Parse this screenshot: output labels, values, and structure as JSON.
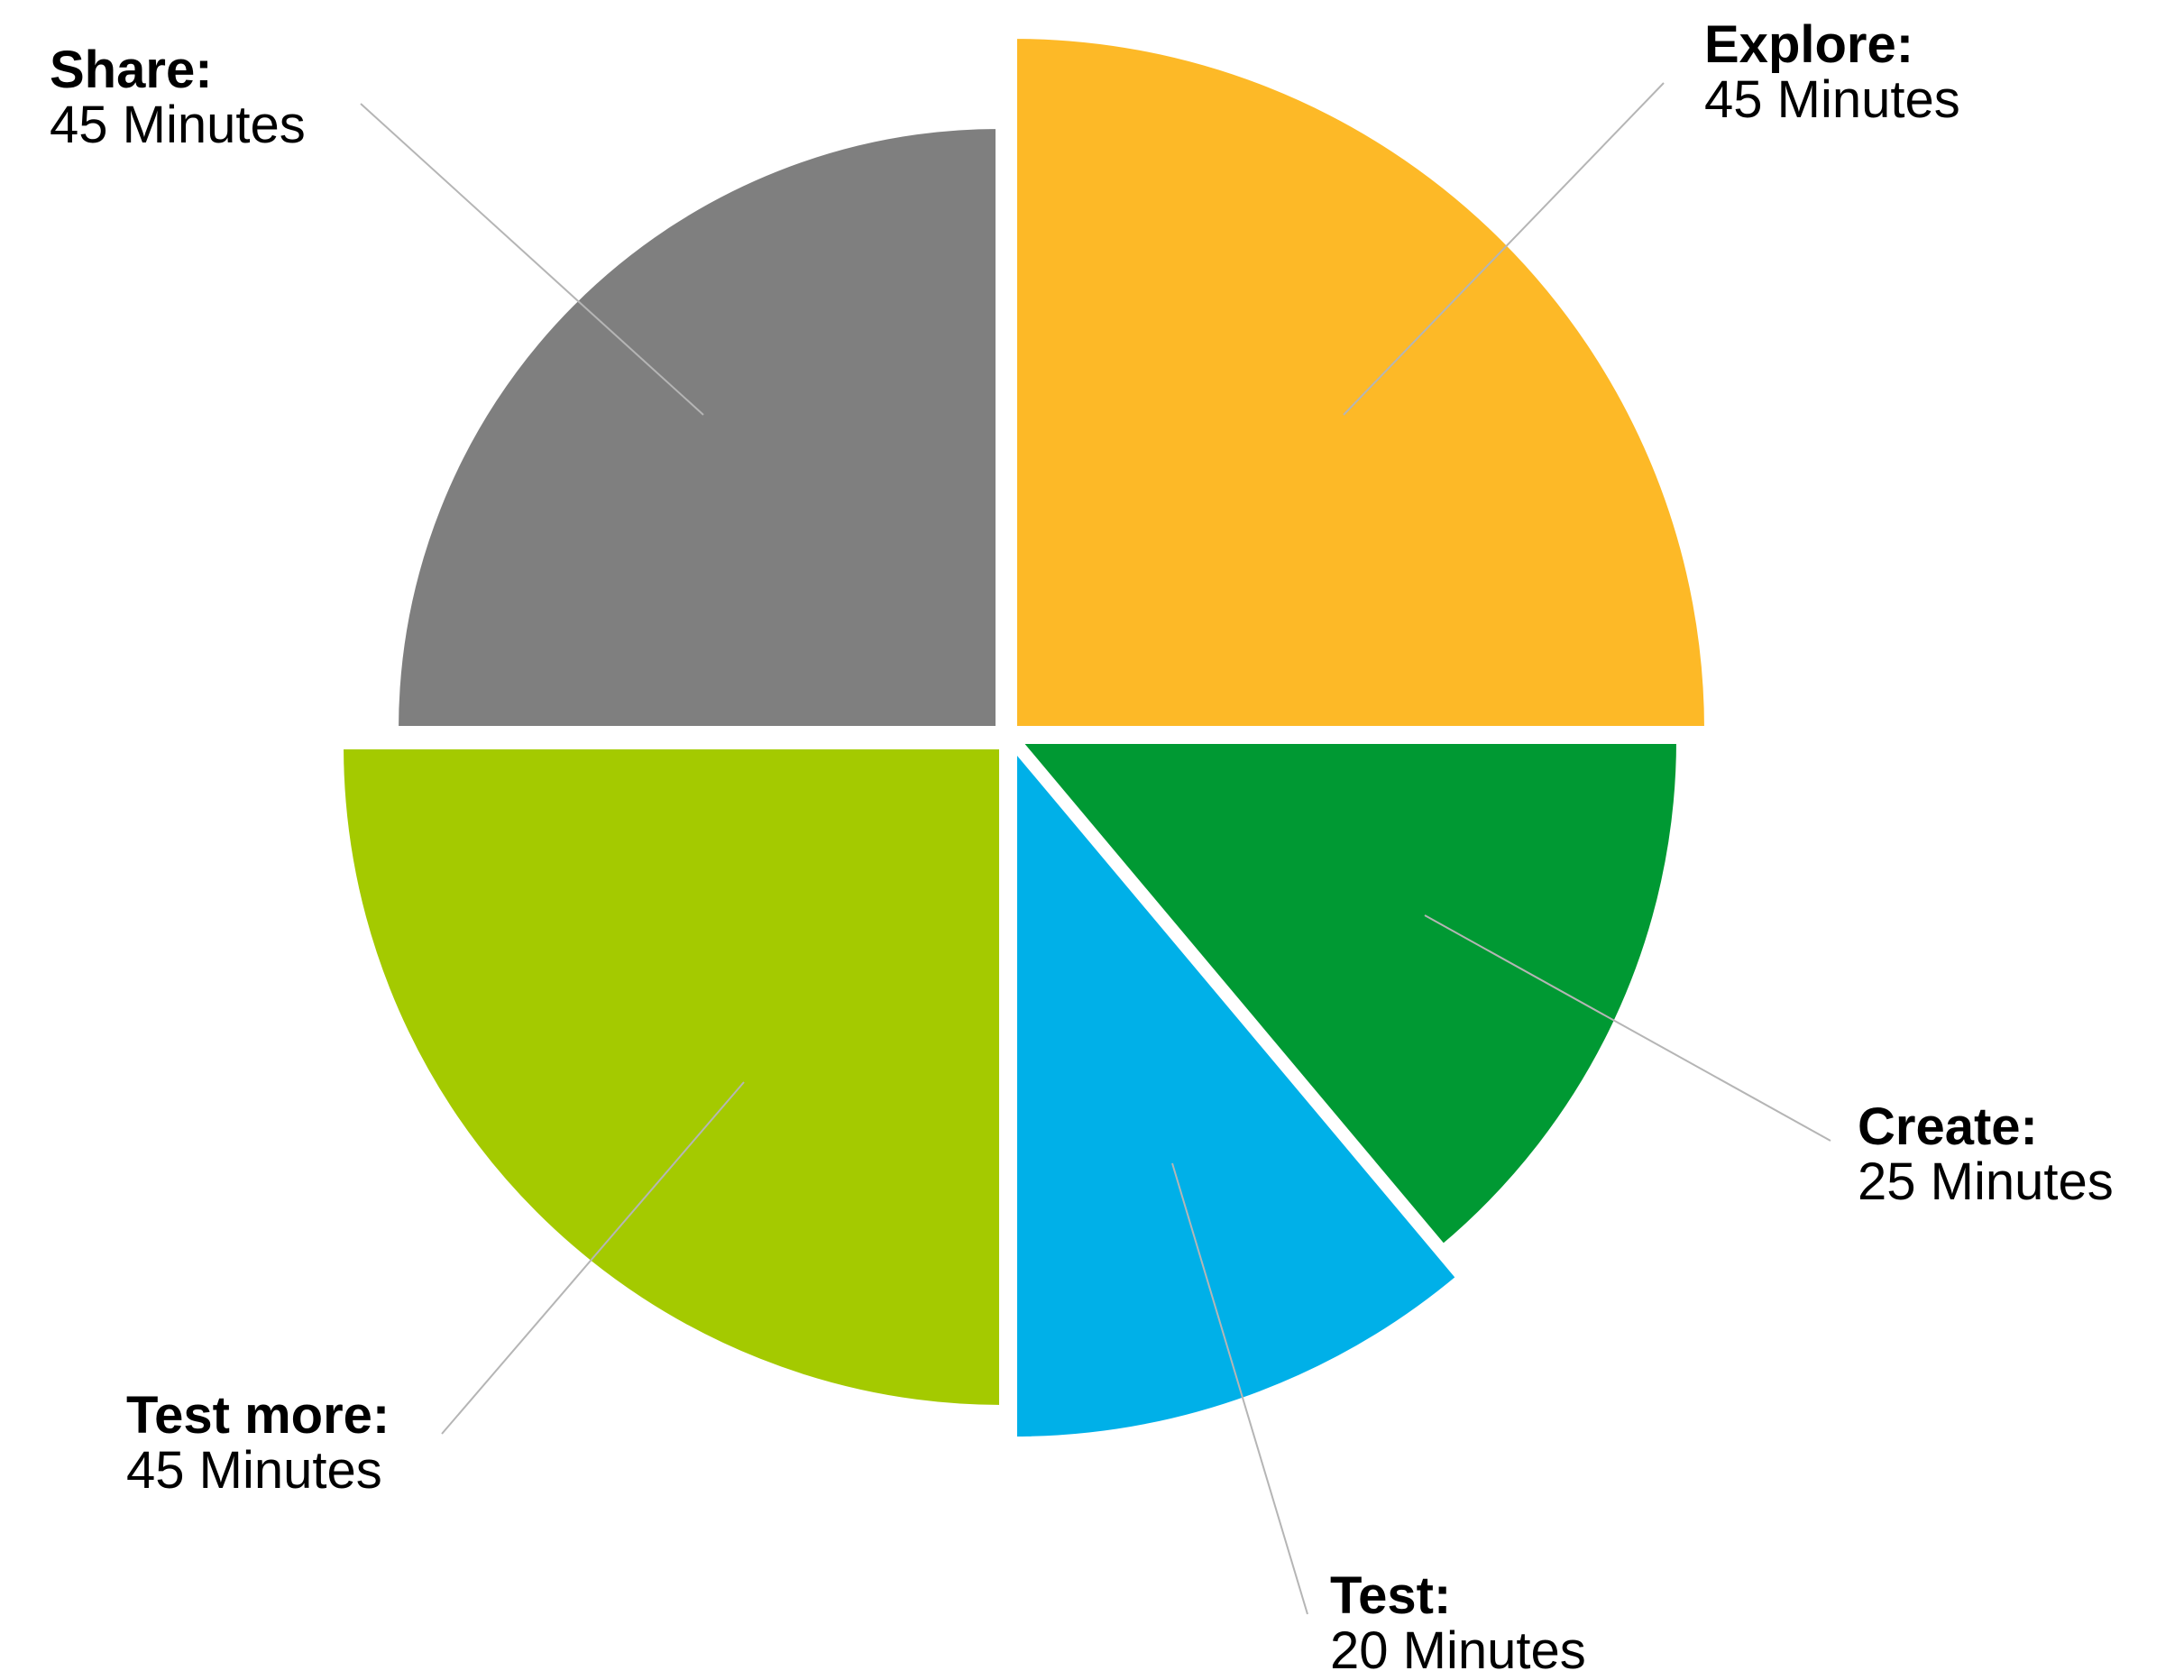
{
  "chart_data": {
    "type": "pie",
    "unit": "Minutes",
    "slices": [
      {
        "name": "Explore:",
        "value": 45,
        "value_label": "45 Minutes",
        "color": "#FDB927"
      },
      {
        "name": "Create:",
        "value": 25,
        "value_label": "25 Minutes",
        "color": "#009933"
      },
      {
        "name": "Test:",
        "value": 20,
        "value_label": "20 Minutes",
        "color": "#00B0E8"
      },
      {
        "name": "Test more:",
        "value": 45,
        "value_label": "45 Minutes",
        "color": "#A4CA00"
      },
      {
        "name": "Share:",
        "value": 45,
        "value_label": "45 Minutes",
        "color": "#7F7F7F"
      }
    ]
  },
  "styles": {
    "leader_line_color": "#B5B5B5",
    "text_color": "#000000",
    "background": "#FFFFFF"
  }
}
